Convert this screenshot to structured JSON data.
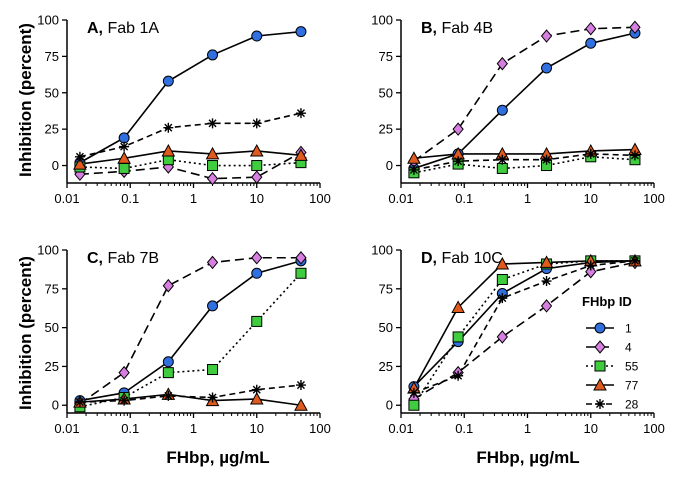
{
  "axis_titles": {
    "y": "Inhibition (percent)",
    "x": "FHbp, µg/mL"
  },
  "legend": {
    "title": "FHbp ID",
    "placement": "bottom-right of panel D"
  },
  "series_styles": [
    {
      "name": "1",
      "marker": "circle",
      "fill": "#2f6fe0",
      "line": "solid"
    },
    {
      "name": "4",
      "marker": "diamond",
      "fill": "#d67fe0",
      "line": "long-dash"
    },
    {
      "name": "55",
      "marker": "square",
      "fill": "#3fcc3f",
      "line": "dotted"
    },
    {
      "name": "77",
      "marker": "triangle",
      "fill": "#e05a1e",
      "line": "solid"
    },
    {
      "name": "28",
      "marker": "asterisk",
      "fill": "#000000",
      "line": "dash"
    }
  ],
  "chart_data": [
    {
      "type": "line",
      "title_letter": "A,",
      "title_rest": "Fab 1A",
      "x_scale": "log",
      "xlim": [
        0.01,
        100
      ],
      "ylim": [
        -12,
        100
      ],
      "x_ticks": [
        "0.01",
        "0.1",
        "1",
        "10",
        "100"
      ],
      "y_ticks": [
        "0",
        "25",
        "50",
        "75",
        "100"
      ],
      "x": [
        0.016,
        0.08,
        0.4,
        2,
        10,
        50
      ],
      "series": [
        {
          "name": "1",
          "values": [
            2,
            19,
            58,
            76,
            89,
            92
          ]
        },
        {
          "name": "4",
          "values": [
            -6,
            -4,
            -1,
            -9,
            -8,
            9
          ]
        },
        {
          "name": "55",
          "values": [
            -1,
            -2,
            4,
            0,
            0,
            2
          ]
        },
        {
          "name": "77",
          "values": [
            1,
            5,
            10,
            8,
            10,
            7
          ]
        },
        {
          "name": "28",
          "values": [
            6,
            13,
            26,
            29,
            29,
            36
          ]
        }
      ]
    },
    {
      "type": "line",
      "title_letter": "B,",
      "title_rest": "Fab 4B",
      "x_scale": "log",
      "xlim": [
        0.01,
        100
      ],
      "ylim": [
        -12,
        100
      ],
      "x_ticks": [
        "0.01",
        "0.1",
        "1",
        "10",
        "100"
      ],
      "y_ticks": [
        "0",
        "25",
        "50",
        "75",
        "100"
      ],
      "x": [
        0.016,
        0.08,
        0.4,
        2,
        10,
        50
      ],
      "series": [
        {
          "name": "1",
          "values": [
            -2,
            8,
            38,
            67,
            84,
            91
          ]
        },
        {
          "name": "4",
          "values": [
            3,
            25,
            70,
            89,
            94,
            95
          ]
        },
        {
          "name": "55",
          "values": [
            -5,
            1,
            -2,
            0,
            6,
            4
          ]
        },
        {
          "name": "77",
          "values": [
            5,
            8,
            8,
            8,
            10,
            11
          ]
        },
        {
          "name": "28",
          "values": [
            -3,
            3,
            4,
            4,
            8,
            7
          ]
        }
      ]
    },
    {
      "type": "line",
      "title_letter": "C,",
      "title_rest": "Fab 7B",
      "x_scale": "log",
      "xlim": [
        0.01,
        100
      ],
      "ylim": [
        -5,
        100
      ],
      "x_ticks": [
        "0.01",
        "0.1",
        "1",
        "10",
        "100"
      ],
      "y_ticks": [
        "0",
        "25",
        "50",
        "75",
        "100"
      ],
      "x": [
        0.016,
        0.08,
        0.4,
        2,
        10,
        50
      ],
      "series": [
        {
          "name": "1",
          "values": [
            3,
            8,
            28,
            64,
            85,
            93
          ]
        },
        {
          "name": "4",
          "values": [
            1,
            21,
            77,
            92,
            95,
            95
          ]
        },
        {
          "name": "55",
          "values": [
            -1,
            5,
            21,
            23,
            54,
            85
          ]
        },
        {
          "name": "77",
          "values": [
            2,
            4,
            7,
            3,
            4,
            0
          ]
        },
        {
          "name": "28",
          "values": [
            2,
            3,
            6,
            5,
            10,
            13
          ]
        }
      ]
    },
    {
      "type": "line",
      "title_letter": "D,",
      "title_rest": "Fab 10C",
      "x_scale": "log",
      "xlim": [
        0.01,
        100
      ],
      "ylim": [
        -5,
        100
      ],
      "x_ticks": [
        "0.01",
        "0.1",
        "1",
        "10",
        "100"
      ],
      "y_ticks": [
        "0",
        "25",
        "50",
        "75",
        "100"
      ],
      "x": [
        0.016,
        0.08,
        0.4,
        2,
        10,
        50
      ],
      "series": [
        {
          "name": "1",
          "values": [
            12,
            41,
            72,
            88,
            92,
            93
          ]
        },
        {
          "name": "4",
          "values": [
            4,
            21,
            44,
            64,
            86,
            92
          ]
        },
        {
          "name": "55",
          "values": [
            0,
            44,
            81,
            91,
            93,
            93
          ]
        },
        {
          "name": "77",
          "values": [
            11,
            63,
            91,
            92,
            93,
            93
          ]
        },
        {
          "name": "28",
          "values": [
            8,
            19,
            69,
            80,
            90,
            93
          ]
        }
      ]
    }
  ]
}
